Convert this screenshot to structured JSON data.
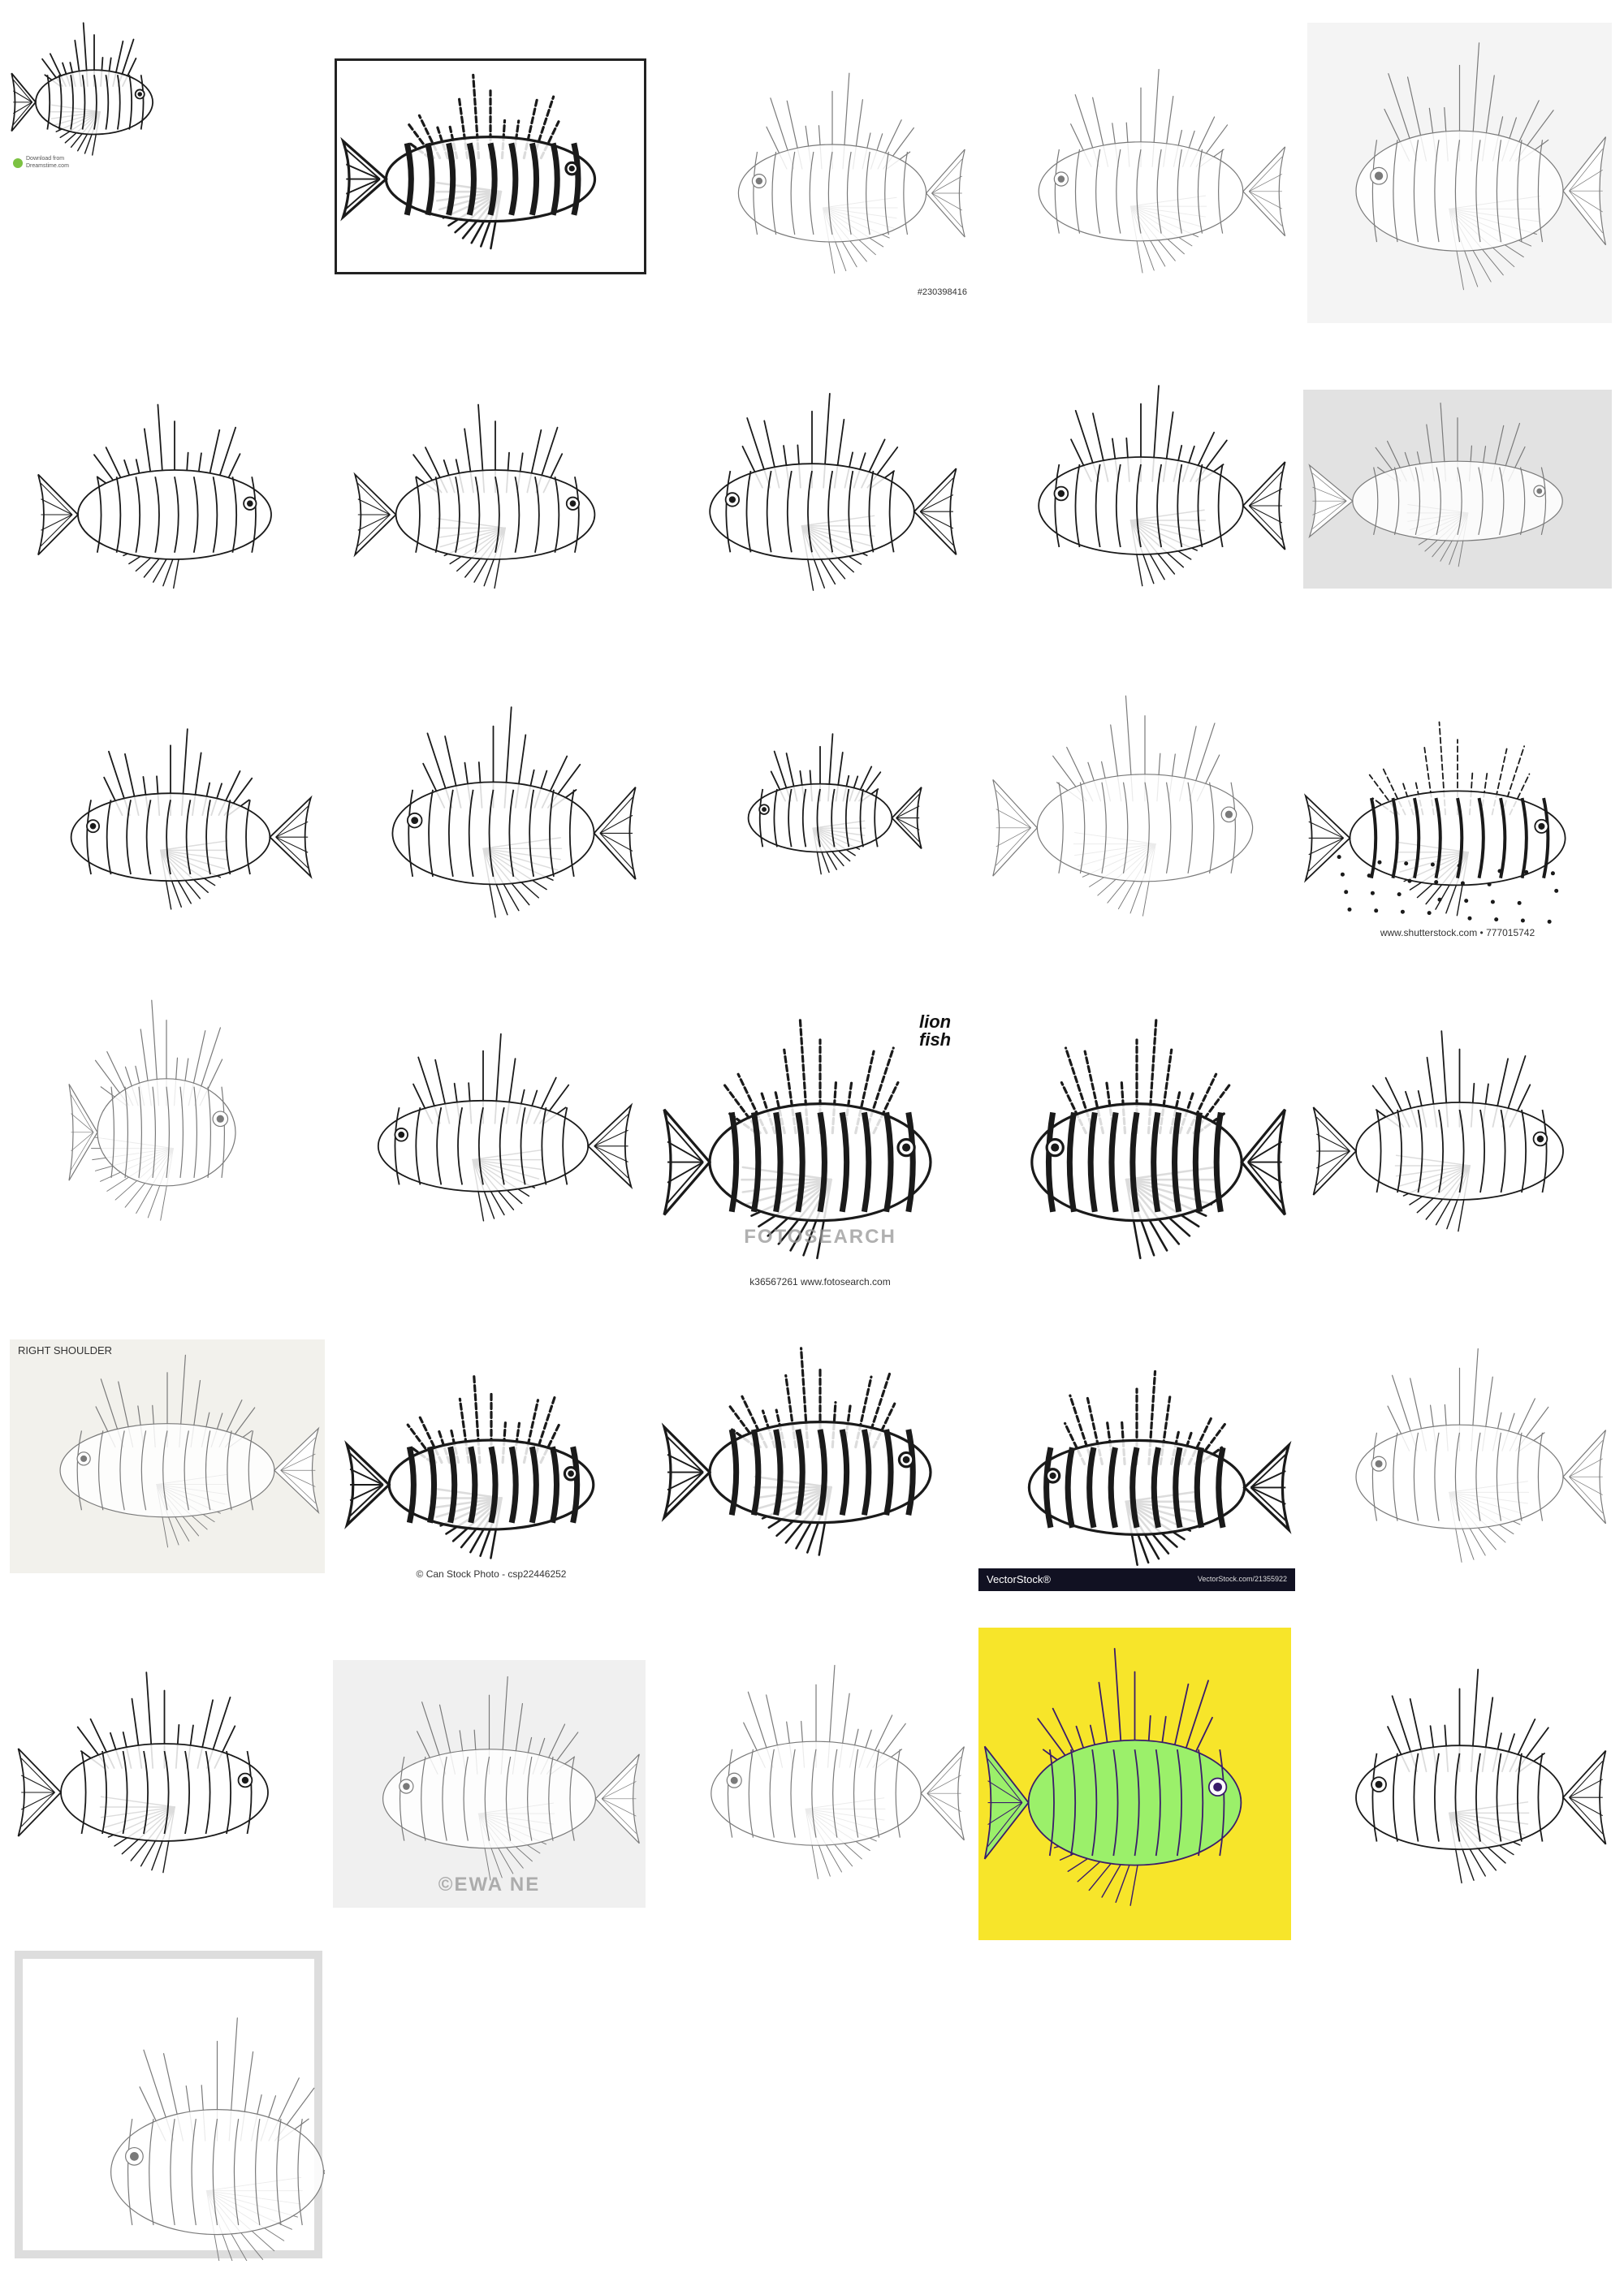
{
  "grid": {
    "background": "#ffffff",
    "ink": "#1a1a1a",
    "cells": [
      {
        "id": "r1c1",
        "style": "ink",
        "bg": "#ffffff",
        "dir": 1,
        "caption_lines": [
          "Download from",
          "Dreamstime.com"
        ]
      },
      {
        "id": "r1c2",
        "style": "bold",
        "bg": "#ffffff",
        "dir": 1,
        "framed": true
      },
      {
        "id": "r1c3",
        "style": "pencil",
        "bg": "#ffffff",
        "dir": -1,
        "captions": [
          "#230398416"
        ]
      },
      {
        "id": "r1c4",
        "style": "pencil",
        "bg": "#ffffff",
        "dir": -1
      },
      {
        "id": "r1c5",
        "style": "pencil",
        "bg": "#f4f4f4",
        "dir": -1
      },
      {
        "id": "r2c1",
        "style": "outline",
        "bg": "#ffffff",
        "dir": 1
      },
      {
        "id": "r2c2",
        "style": "ink",
        "bg": "#ffffff",
        "dir": 1
      },
      {
        "id": "r2c3",
        "style": "ink",
        "bg": "#ffffff",
        "dir": -1
      },
      {
        "id": "r2c4",
        "style": "ink",
        "bg": "#ffffff",
        "dir": -1
      },
      {
        "id": "r2c5",
        "style": "pencil",
        "bg": "#e2e2e2",
        "dir": 1
      },
      {
        "id": "r3c1",
        "style": "ink",
        "bg": "#ffffff",
        "dir": -1
      },
      {
        "id": "r3c2",
        "style": "ink",
        "bg": "#ffffff",
        "dir": -1
      },
      {
        "id": "r3c3",
        "style": "ink",
        "bg": "#ffffff",
        "dir": -1
      },
      {
        "id": "r3c4",
        "style": "pencil",
        "bg": "#ffffff",
        "dir": 1
      },
      {
        "id": "r3c5",
        "style": "spotted",
        "bg": "#ffffff",
        "dir": 1,
        "captions": [
          "www.shutterstock.com • 777015742"
        ]
      },
      {
        "id": "r4c1",
        "style": "pencil",
        "bg": "#ffffff",
        "dir": 1
      },
      {
        "id": "r4c2",
        "style": "ink",
        "bg": "#ffffff",
        "dir": -1
      },
      {
        "id": "r4c3",
        "style": "bold",
        "bg": "#ffffff",
        "dir": 1,
        "title_text": "lion fish",
        "watermark": "FOTOSEARCH",
        "captions": [
          "k36567261  www.fotosearch.com"
        ]
      },
      {
        "id": "r4c4",
        "style": "bold",
        "bg": "#ffffff",
        "dir": -1
      },
      {
        "id": "r4c5",
        "style": "ink",
        "bg": "#ffffff",
        "dir": 1
      },
      {
        "id": "r5c1",
        "style": "pencil",
        "bg": "#f2f1ec",
        "dir": -1,
        "title_text": "RIGHT SHOULDER"
      },
      {
        "id": "r5c2",
        "style": "bold",
        "bg": "#ffffff",
        "dir": 1,
        "captions": [
          "© Can Stock Photo - csp22446252"
        ]
      },
      {
        "id": "r5c3",
        "style": "bold",
        "bg": "#ffffff",
        "dir": 1
      },
      {
        "id": "r5c4",
        "style": "bold",
        "bg": "#ffffff",
        "dir": -1,
        "footer_left": "VectorStock®",
        "footer_right": "VectorStock.com/21355922",
        "footer_color": "#111122"
      },
      {
        "id": "r5c5",
        "style": "pencil",
        "bg": "#ffffff",
        "dir": -1
      },
      {
        "id": "r6c1",
        "style": "ink",
        "bg": "#ffffff",
        "dir": 1
      },
      {
        "id": "r6c2",
        "style": "pencil",
        "bg": "#f0f0f0",
        "dir": -1,
        "watermark": "©EWA NE"
      },
      {
        "id": "r6c3",
        "style": "pencil",
        "bg": "#ffffff",
        "dir": -1
      },
      {
        "id": "r6c4",
        "style": "color",
        "bg": "#f7e52a",
        "dir": 1,
        "fish_colors": [
          "#3a1c6b",
          "#9bf06a"
        ]
      },
      {
        "id": "r6c5",
        "style": "ink",
        "bg": "#ffffff",
        "dir": -1
      },
      {
        "id": "r7c1",
        "style": "pencil",
        "bg": "#ffffff",
        "dir": -1,
        "framed_print": true
      }
    ]
  }
}
